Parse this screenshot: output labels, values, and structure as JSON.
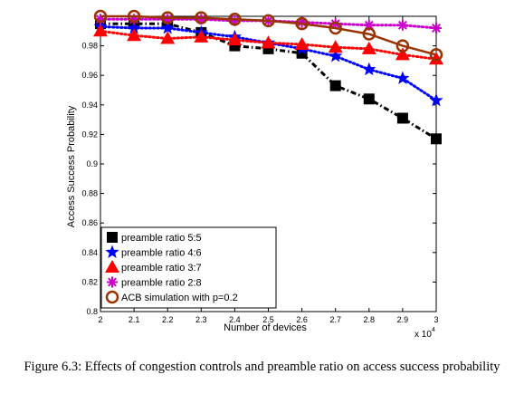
{
  "caption": "Figure 6.3: Effects of congestion controls and preamble ratio on access success probability",
  "chart_data": {
    "type": "line",
    "title": "",
    "xlabel": "Number of devices",
    "ylabel": "Access Success Probability",
    "x_multiplier_label": "x 10",
    "x_multiplier_exponent": "4",
    "x": [
      2,
      2.1,
      2.2,
      2.3,
      2.4,
      2.5,
      2.6,
      2.7,
      2.8,
      2.9,
      3
    ],
    "x_tick_labels": [
      "2",
      "2.1",
      "2.2",
      "2.3",
      "2.4",
      "2.5",
      "2.6",
      "2.7",
      "2.8",
      "2.9",
      "3"
    ],
    "xlim": [
      2,
      3
    ],
    "ylim": [
      0.8,
      1.0
    ],
    "y_ticks": [
      0.8,
      0.82,
      0.84,
      0.86,
      0.88,
      0.9,
      0.92,
      0.94,
      0.96,
      0.98
    ],
    "y_tick_labels": [
      "0.8",
      "0.82",
      "0.84",
      "0.86",
      "0.88",
      "0.9",
      "0.92",
      "0.94",
      "0.96",
      "0.98"
    ],
    "grid": false,
    "legend_position": "bottom-left",
    "series": [
      {
        "name": "preamble ratio 5:5",
        "color": "#000000",
        "marker": "square",
        "line": "dashdot",
        "values": [
          0.995,
          0.995,
          0.995,
          0.989,
          0.98,
          0.978,
          0.975,
          0.953,
          0.944,
          0.931,
          0.917
        ]
      },
      {
        "name": "preamble ratio 4:6",
        "color": "#0000ff",
        "marker": "star",
        "line": "dotted",
        "values": [
          0.993,
          0.992,
          0.992,
          0.989,
          0.986,
          0.982,
          0.978,
          0.973,
          0.964,
          0.958,
          0.943
        ]
      },
      {
        "name": "preamble ratio 3:7",
        "color": "#ff0000",
        "marker": "triangle",
        "line": "dotted",
        "values": [
          0.99,
          0.987,
          0.985,
          0.986,
          0.984,
          0.982,
          0.981,
          0.979,
          0.978,
          0.974,
          0.971
        ]
      },
      {
        "name": "preamble ratio 2:8",
        "color": "#cc00cc",
        "marker": "asterisk",
        "line": "dotted",
        "values": [
          0.998,
          0.998,
          0.998,
          0.998,
          0.997,
          0.997,
          0.996,
          0.995,
          0.994,
          0.994,
          0.992
        ]
      },
      {
        "name": "ACB simulation with p=0.2",
        "color": "#993300",
        "marker": "circle",
        "line": "solid",
        "values": [
          1.0,
          1.0,
          0.999,
          0.999,
          0.998,
          0.997,
          0.995,
          0.992,
          0.988,
          0.98,
          0.974
        ]
      }
    ]
  }
}
